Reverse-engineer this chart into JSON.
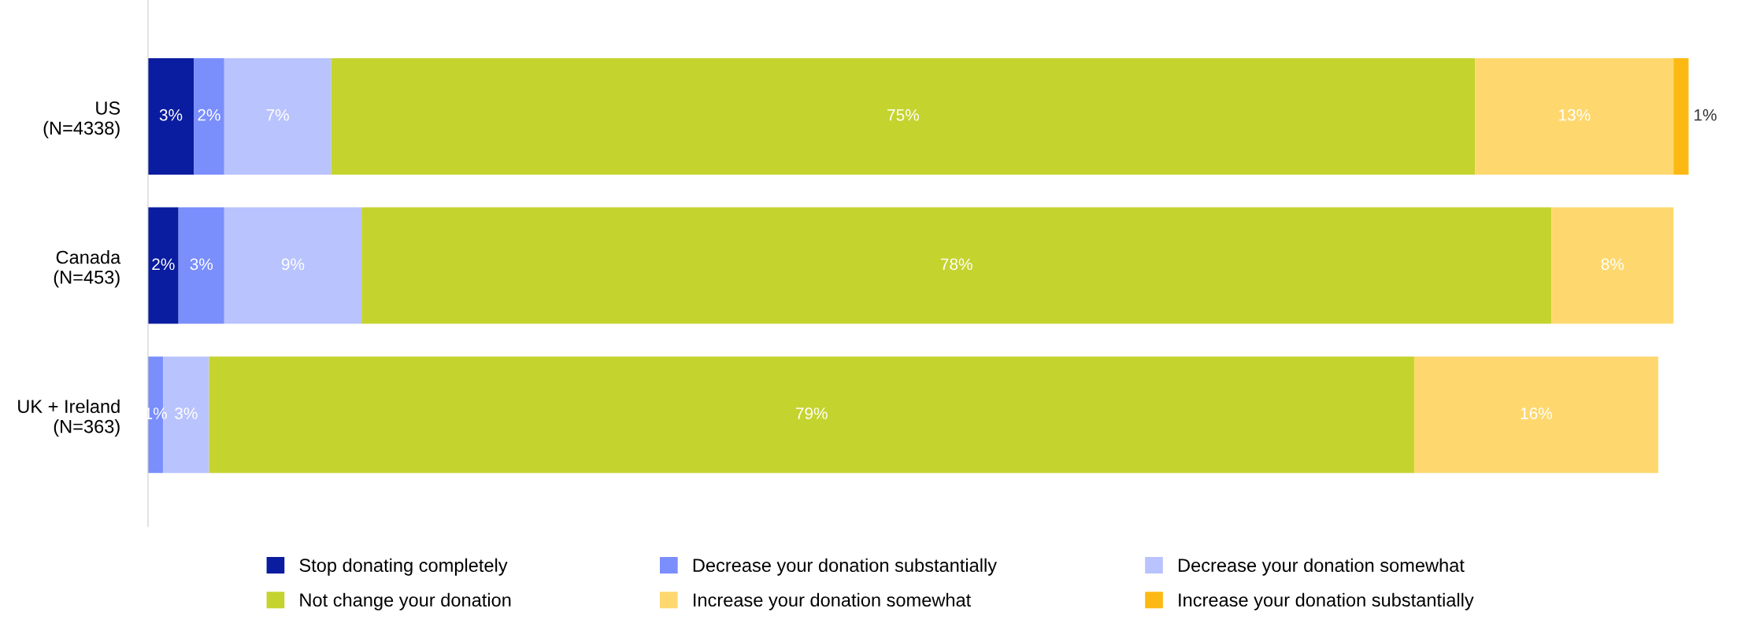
{
  "chart_data": {
    "type": "bar",
    "orientation": "horizontal",
    "stacked": true,
    "legend": "bottom",
    "grid": false,
    "categories": [
      "US\n(N=4338)",
      "Canada\n(N=453)",
      "UK + Ireland\n(N=363)"
    ],
    "series": [
      {
        "name": "Stop donating completely",
        "color": "#0a1c9f",
        "values": [
          3,
          2,
          null
        ],
        "value_labels": [
          "3%",
          "2%",
          null
        ]
      },
      {
        "name": "Decrease your donation substantially",
        "color": "#7a8efc",
        "values": [
          2,
          3,
          1
        ],
        "value_labels": [
          "2%",
          "3%",
          "1%"
        ]
      },
      {
        "name": "Decrease your donation somewhat",
        "color": "#b9c3fd",
        "values": [
          7,
          9,
          3
        ],
        "value_labels": [
          "7%",
          "9%",
          "3%"
        ]
      },
      {
        "name": "Not change your donation",
        "color": "#c5d32e",
        "values": [
          75,
          78,
          79
        ],
        "value_labels": [
          "75%",
          "78%",
          "79%"
        ]
      },
      {
        "name": "Increase your donation somewhat",
        "color": "#fed86f",
        "values": [
          13,
          8,
          16
        ],
        "value_labels": [
          "13%",
          "8%",
          "16%"
        ]
      },
      {
        "name": "Increase your donation substantially",
        "color": "#fdb913",
        "values": [
          1,
          null,
          null
        ],
        "value_labels": [
          "1%",
          null,
          null
        ]
      }
    ]
  }
}
